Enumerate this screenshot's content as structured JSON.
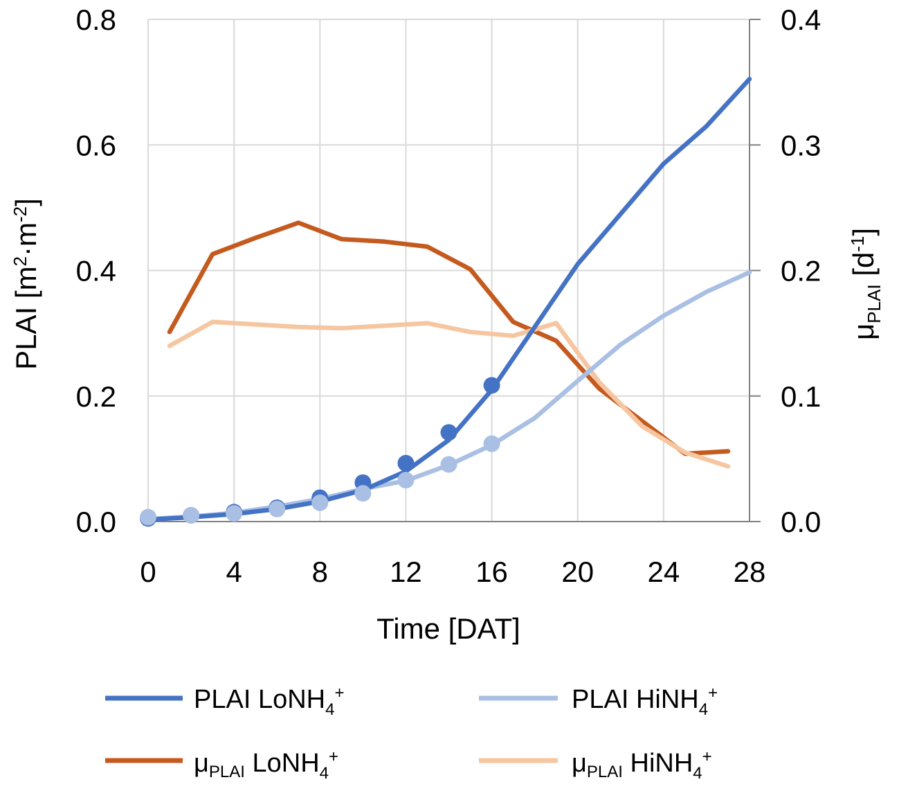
{
  "chart_data": {
    "type": "line",
    "xlabel": "Time [DAT]",
    "ylabel_left": {
      "base": "PLAI [m",
      "sup1": "2",
      "mid": "·m",
      "sup2": "-2",
      "end": "]"
    },
    "ylabel_right": {
      "mu": "μ",
      "sub": "PLAI",
      "mid": " [d",
      "sup": "-1",
      "end": "]"
    },
    "xlim": [
      0,
      28
    ],
    "ylim_left": [
      0,
      0.8
    ],
    "ylim_right": [
      0,
      0.4
    ],
    "xticks": [
      0,
      4,
      8,
      12,
      16,
      20,
      24,
      28
    ],
    "xtick_labels": [
      "0",
      "4",
      "8",
      "12",
      "16",
      "20",
      "24",
      "28"
    ],
    "yticks_left": [
      0,
      0.2,
      0.4,
      0.6,
      0.8
    ],
    "ytick_labels_left": [
      "0.0",
      "0.2",
      "0.4",
      "0.6",
      "0.8"
    ],
    "yticks_right": [
      0,
      0.1,
      0.2,
      0.3,
      0.4
    ],
    "ytick_labels_right": [
      "0.0",
      "0.1",
      "0.2",
      "0.3",
      "0.4"
    ],
    "grid": true,
    "series": [
      {
        "name": "PLAI LoNH4+",
        "legend": {
          "pre": "PLAI LoNH",
          "sub": "4",
          "sup": "+"
        },
        "color": "#4472c4",
        "axis": "left",
        "line": [
          [
            0,
            0.003
          ],
          [
            2,
            0.007
          ],
          [
            4,
            0.012
          ],
          [
            6,
            0.02
          ],
          [
            8,
            0.032
          ],
          [
            10,
            0.05
          ],
          [
            12,
            0.08
          ],
          [
            14,
            0.13
          ],
          [
            16,
            0.21
          ],
          [
            18,
            0.31
          ],
          [
            20,
            0.41
          ],
          [
            22,
            0.49
          ],
          [
            24,
            0.57
          ],
          [
            26,
            0.63
          ],
          [
            28,
            0.705
          ]
        ],
        "points": [
          [
            0,
            0.005
          ],
          [
            2,
            0.01
          ],
          [
            4,
            0.015
          ],
          [
            6,
            0.022
          ],
          [
            8,
            0.038
          ],
          [
            10,
            0.062
          ],
          [
            12,
            0.093
          ],
          [
            14,
            0.142
          ],
          [
            16,
            0.217
          ]
        ]
      },
      {
        "name": "PLAI HiNH4+",
        "legend": {
          "pre": "PLAI HiNH",
          "sub": "4",
          "sup": "+"
        },
        "color": "#a9bfe3",
        "axis": "left",
        "line": [
          [
            0,
            0.004
          ],
          [
            2,
            0.008
          ],
          [
            4,
            0.014
          ],
          [
            6,
            0.024
          ],
          [
            8,
            0.036
          ],
          [
            10,
            0.052
          ],
          [
            12,
            0.065
          ],
          [
            14,
            0.09
          ],
          [
            16,
            0.122
          ],
          [
            18,
            0.165
          ],
          [
            20,
            0.224
          ],
          [
            22,
            0.282
          ],
          [
            24,
            0.328
          ],
          [
            26,
            0.366
          ],
          [
            28,
            0.397
          ]
        ],
        "points": [
          [
            0,
            0.007
          ],
          [
            2,
            0.01
          ],
          [
            4,
            0.013
          ],
          [
            6,
            0.02
          ],
          [
            8,
            0.03
          ],
          [
            10,
            0.045
          ],
          [
            12,
            0.066
          ],
          [
            14,
            0.091
          ],
          [
            16,
            0.124
          ]
        ]
      },
      {
        "name": "μPLAI LoNH4+",
        "legend": {
          "mu": "μ",
          "musub": "PLAI",
          "pre": " LoNH",
          "sub": "4",
          "sup": "+"
        },
        "color": "#c55a1f",
        "axis": "right",
        "line": [
          [
            1,
            0.151
          ],
          [
            3,
            0.213
          ],
          [
            5,
            0.226
          ],
          [
            7,
            0.238
          ],
          [
            9,
            0.225
          ],
          [
            11,
            0.223
          ],
          [
            13,
            0.219
          ],
          [
            15,
            0.201
          ],
          [
            17,
            0.159
          ],
          [
            19,
            0.144
          ],
          [
            21,
            0.106
          ],
          [
            23,
            0.08
          ],
          [
            25,
            0.054
          ],
          [
            27,
            0.056
          ]
        ],
        "points": []
      },
      {
        "name": "μPLAI HiNH4+",
        "legend": {
          "mu": "μ",
          "musub": "PLAI",
          "pre": " HiNH",
          "sub": "4",
          "sup": "+"
        },
        "color": "#f6c6a0",
        "axis": "right",
        "line": [
          [
            1,
            0.14
          ],
          [
            3,
            0.159
          ],
          [
            5,
            0.157
          ],
          [
            7,
            0.155
          ],
          [
            9,
            0.154
          ],
          [
            11,
            0.156
          ],
          [
            13,
            0.158
          ],
          [
            15,
            0.151
          ],
          [
            17,
            0.148
          ],
          [
            19,
            0.158
          ],
          [
            21,
            0.111
          ],
          [
            23,
            0.076
          ],
          [
            25,
            0.055
          ],
          [
            27,
            0.044
          ]
        ],
        "points": []
      }
    ]
  }
}
